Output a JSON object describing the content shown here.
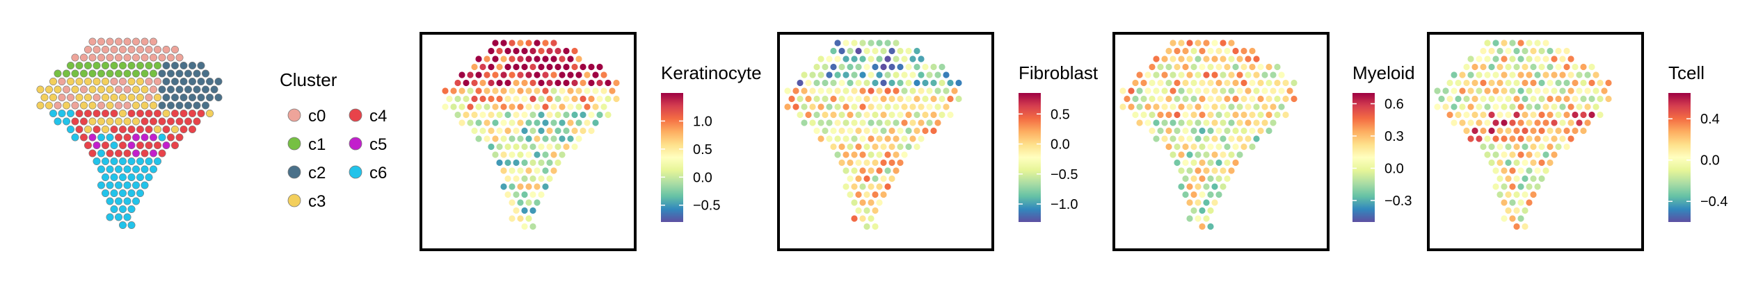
{
  "chart_data": [
    {
      "type": "scatter",
      "title": "",
      "legend": {
        "title": "Cluster",
        "placement": "right",
        "entries": [
          {
            "label": "c0",
            "color": "#EEA49A"
          },
          {
            "label": "c1",
            "color": "#76C043"
          },
          {
            "label": "c2",
            "color": "#4A7089"
          },
          {
            "label": "c3",
            "color": "#F3CF5C"
          },
          {
            "label": "c4",
            "color": "#E8434A"
          },
          {
            "label": "c5",
            "color": "#C21FCC"
          },
          {
            "label": "c6",
            "color": "#22C3EA"
          }
        ]
      }
    },
    {
      "type": "heatmap",
      "colorbar_title": "Keratinocyte",
      "range": [
        -0.8,
        1.5
      ],
      "ticks": [
        1.0,
        0.5,
        0.0,
        -0.5
      ],
      "tick_labels": [
        "1.0",
        "0.5",
        "0.0",
        "−0.5"
      ],
      "grid": false
    },
    {
      "type": "heatmap",
      "colorbar_title": "Fibroblast",
      "range": [
        -1.3,
        0.85
      ],
      "ticks": [
        0.5,
        0.0,
        -0.5,
        -1.0
      ],
      "tick_labels": [
        "0.5",
        "0.0",
        "−0.5",
        "−1.0"
      ],
      "grid": false
    },
    {
      "type": "heatmap",
      "colorbar_title": "Myeloid",
      "range": [
        -0.5,
        0.7
      ],
      "ticks": [
        0.6,
        0.3,
        0.0,
        -0.3
      ],
      "tick_labels": [
        "0.6",
        "0.3",
        "0.0",
        "−0.3"
      ],
      "grid": false
    },
    {
      "type": "heatmap",
      "colorbar_title": "Tcell",
      "range": [
        -0.6,
        0.65
      ],
      "ticks": [
        0.4,
        0.0,
        -0.4
      ],
      "tick_labels": [
        "0.4",
        "0.0",
        "−0.4"
      ],
      "grid": false
    }
  ]
}
